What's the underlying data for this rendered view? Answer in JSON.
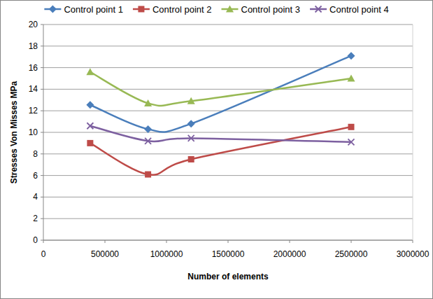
{
  "chart_data": {
    "type": "line",
    "x_label": "Number of elements",
    "y_label": "Stresses Von Misses MPa",
    "x": [
      380000,
      850000,
      1200000,
      2500000
    ],
    "xlim": [
      0,
      3000000
    ],
    "xticks": [
      0,
      500000,
      1000000,
      1500000,
      2000000,
      2500000,
      3000000
    ],
    "ylim": [
      0,
      20
    ],
    "yticks": [
      0,
      2,
      4,
      6,
      8,
      10,
      12,
      14,
      16,
      18,
      20
    ],
    "grid": true,
    "legend": "top",
    "line_style": "smooth",
    "series": [
      {
        "name": "Control point 1",
        "color": "#4a7ebb",
        "marker": "diamond",
        "values": [
          12.55,
          10.3,
          10.8,
          17.1
        ]
      },
      {
        "name": "Control point 2",
        "color": "#be4b48",
        "marker": "square",
        "values": [
          9.0,
          6.1,
          7.5,
          10.5
        ]
      },
      {
        "name": "Control point 3",
        "color": "#98b954",
        "marker": "triangle",
        "values": [
          15.6,
          12.7,
          12.9,
          15.0
        ]
      },
      {
        "name": "Control point 4",
        "color": "#7d60a0",
        "marker": "x",
        "values": [
          10.6,
          9.2,
          9.45,
          9.1
        ]
      }
    ]
  }
}
